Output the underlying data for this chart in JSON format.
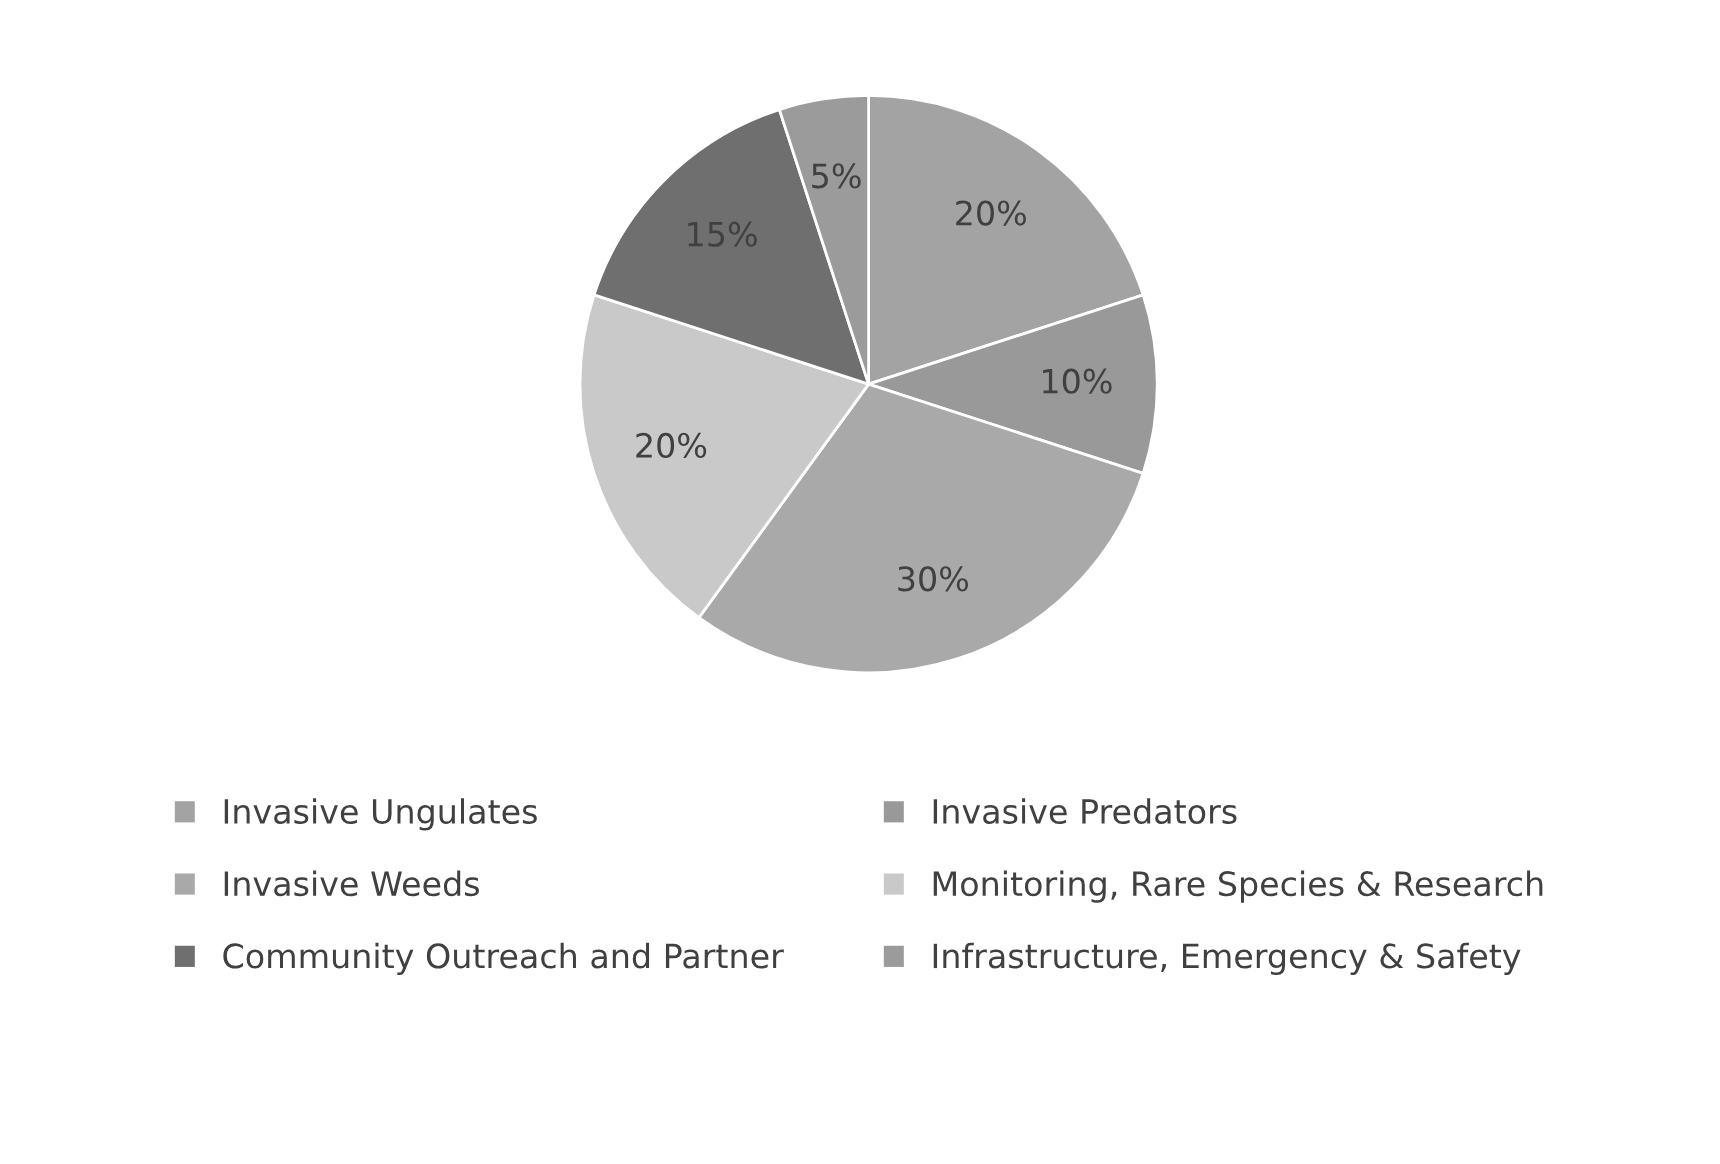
{
  "chart_data": {
    "type": "pie",
    "categories": [
      "Invasive Ungulates",
      "Invasive Predators",
      "Invasive Weeds",
      "Monitoring, Rare Species & Research",
      "Community Outreach and Partner",
      "Infrastructure, Emergency & Safety"
    ],
    "values": [
      20,
      10,
      30,
      20,
      15,
      5
    ],
    "colors": [
      "#a3a3a3",
      "#999999",
      "#a9a9a9",
      "#c9c9c9",
      "#6f6f6f",
      "#9b9b9b"
    ],
    "value_labels": [
      "20%",
      "10%",
      "30%",
      "20%",
      "15%",
      "5%"
    ],
    "legend": "bottom"
  }
}
